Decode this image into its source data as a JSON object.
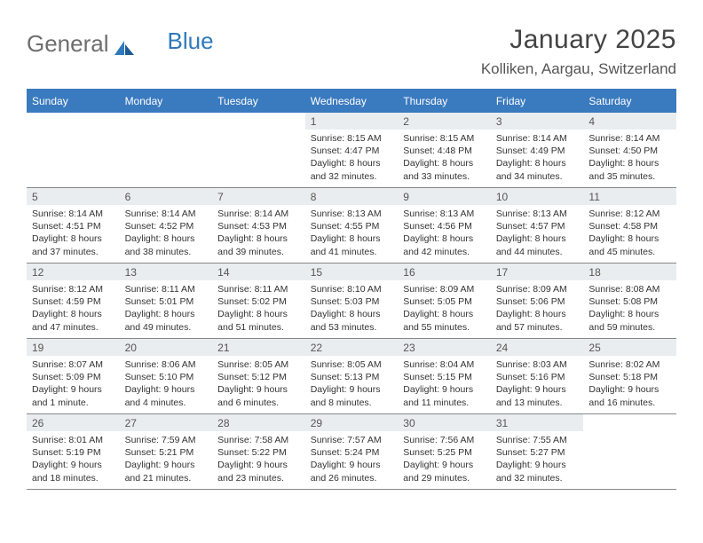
{
  "logo": {
    "part1": "General",
    "part2": "Blue"
  },
  "title": "January 2025",
  "location": "Kolliken, Aargau, Switzerland",
  "colors": {
    "headerBarBg": "#3a7abf",
    "headerBarText": "#ffffff",
    "dayNumBg": "#e9edef",
    "dayNumText": "#555555",
    "bodyText": "#333333",
    "ruleLine": "#888888",
    "pageBg": "#ffffff",
    "logoGray": "#6e6e6e",
    "logoBlue": "#2f79bd"
  },
  "layout": {
    "pageWidth": 792,
    "pageHeight": 612,
    "columns": 7,
    "weeks": 5,
    "dayMinHeight": 84,
    "bodyFontSize": 10.5,
    "dowFontSize": 12,
    "titleFontSize": 30,
    "locationFontSize": 17
  },
  "dow": [
    "Sunday",
    "Monday",
    "Tuesday",
    "Wednesday",
    "Thursday",
    "Friday",
    "Saturday"
  ],
  "weeks": [
    [
      {
        "n": "",
        "sunrise": "",
        "sunset": "",
        "dl": ""
      },
      {
        "n": "",
        "sunrise": "",
        "sunset": "",
        "dl": ""
      },
      {
        "n": "",
        "sunrise": "",
        "sunset": "",
        "dl": ""
      },
      {
        "n": "1",
        "sunrise": "8:15 AM",
        "sunset": "4:47 PM",
        "dl": "8 hours and 32 minutes."
      },
      {
        "n": "2",
        "sunrise": "8:15 AM",
        "sunset": "4:48 PM",
        "dl": "8 hours and 33 minutes."
      },
      {
        "n": "3",
        "sunrise": "8:14 AM",
        "sunset": "4:49 PM",
        "dl": "8 hours and 34 minutes."
      },
      {
        "n": "4",
        "sunrise": "8:14 AM",
        "sunset": "4:50 PM",
        "dl": "8 hours and 35 minutes."
      }
    ],
    [
      {
        "n": "5",
        "sunrise": "8:14 AM",
        "sunset": "4:51 PM",
        "dl": "8 hours and 37 minutes."
      },
      {
        "n": "6",
        "sunrise": "8:14 AM",
        "sunset": "4:52 PM",
        "dl": "8 hours and 38 minutes."
      },
      {
        "n": "7",
        "sunrise": "8:14 AM",
        "sunset": "4:53 PM",
        "dl": "8 hours and 39 minutes."
      },
      {
        "n": "8",
        "sunrise": "8:13 AM",
        "sunset": "4:55 PM",
        "dl": "8 hours and 41 minutes."
      },
      {
        "n": "9",
        "sunrise": "8:13 AM",
        "sunset": "4:56 PM",
        "dl": "8 hours and 42 minutes."
      },
      {
        "n": "10",
        "sunrise": "8:13 AM",
        "sunset": "4:57 PM",
        "dl": "8 hours and 44 minutes."
      },
      {
        "n": "11",
        "sunrise": "8:12 AM",
        "sunset": "4:58 PM",
        "dl": "8 hours and 45 minutes."
      }
    ],
    [
      {
        "n": "12",
        "sunrise": "8:12 AM",
        "sunset": "4:59 PM",
        "dl": "8 hours and 47 minutes."
      },
      {
        "n": "13",
        "sunrise": "8:11 AM",
        "sunset": "5:01 PM",
        "dl": "8 hours and 49 minutes."
      },
      {
        "n": "14",
        "sunrise": "8:11 AM",
        "sunset": "5:02 PM",
        "dl": "8 hours and 51 minutes."
      },
      {
        "n": "15",
        "sunrise": "8:10 AM",
        "sunset": "5:03 PM",
        "dl": "8 hours and 53 minutes."
      },
      {
        "n": "16",
        "sunrise": "8:09 AM",
        "sunset": "5:05 PM",
        "dl": "8 hours and 55 minutes."
      },
      {
        "n": "17",
        "sunrise": "8:09 AM",
        "sunset": "5:06 PM",
        "dl": "8 hours and 57 minutes."
      },
      {
        "n": "18",
        "sunrise": "8:08 AM",
        "sunset": "5:08 PM",
        "dl": "8 hours and 59 minutes."
      }
    ],
    [
      {
        "n": "19",
        "sunrise": "8:07 AM",
        "sunset": "5:09 PM",
        "dl": "9 hours and 1 minute."
      },
      {
        "n": "20",
        "sunrise": "8:06 AM",
        "sunset": "5:10 PM",
        "dl": "9 hours and 4 minutes."
      },
      {
        "n": "21",
        "sunrise": "8:05 AM",
        "sunset": "5:12 PM",
        "dl": "9 hours and 6 minutes."
      },
      {
        "n": "22",
        "sunrise": "8:05 AM",
        "sunset": "5:13 PM",
        "dl": "9 hours and 8 minutes."
      },
      {
        "n": "23",
        "sunrise": "8:04 AM",
        "sunset": "5:15 PM",
        "dl": "9 hours and 11 minutes."
      },
      {
        "n": "24",
        "sunrise": "8:03 AM",
        "sunset": "5:16 PM",
        "dl": "9 hours and 13 minutes."
      },
      {
        "n": "25",
        "sunrise": "8:02 AM",
        "sunset": "5:18 PM",
        "dl": "9 hours and 16 minutes."
      }
    ],
    [
      {
        "n": "26",
        "sunrise": "8:01 AM",
        "sunset": "5:19 PM",
        "dl": "9 hours and 18 minutes."
      },
      {
        "n": "27",
        "sunrise": "7:59 AM",
        "sunset": "5:21 PM",
        "dl": "9 hours and 21 minutes."
      },
      {
        "n": "28",
        "sunrise": "7:58 AM",
        "sunset": "5:22 PM",
        "dl": "9 hours and 23 minutes."
      },
      {
        "n": "29",
        "sunrise": "7:57 AM",
        "sunset": "5:24 PM",
        "dl": "9 hours and 26 minutes."
      },
      {
        "n": "30",
        "sunrise": "7:56 AM",
        "sunset": "5:25 PM",
        "dl": "9 hours and 29 minutes."
      },
      {
        "n": "31",
        "sunrise": "7:55 AM",
        "sunset": "5:27 PM",
        "dl": "9 hours and 32 minutes."
      },
      {
        "n": "",
        "sunrise": "",
        "sunset": "",
        "dl": ""
      }
    ]
  ],
  "labels": {
    "sunrise": "Sunrise: ",
    "sunset": "Sunset: ",
    "daylight": "Daylight: "
  }
}
